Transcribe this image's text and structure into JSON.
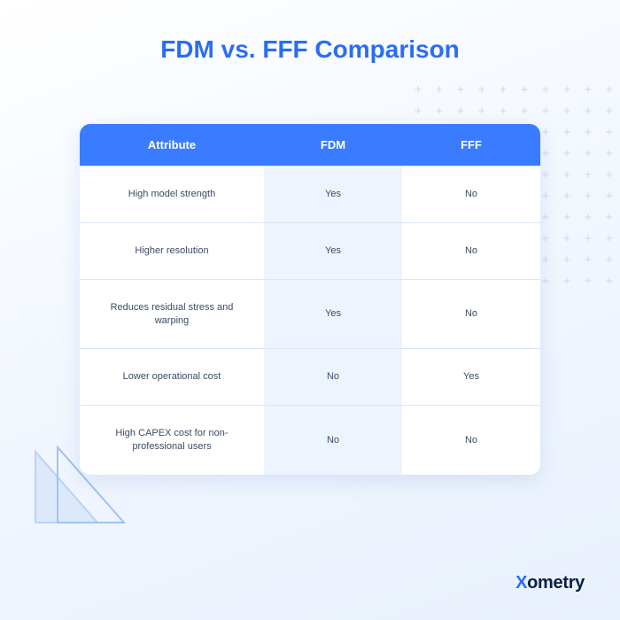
{
  "title": "FDM vs. FFF Comparison",
  "title_color": "#2a6df4",
  "header_bg": "#3a7cff",
  "header_text_color": "#ffffff",
  "row_border_color": "#d9e6f7",
  "highlight_col_bg": "#eef4fd",
  "cell_text_color": "#3a4a66",
  "columns": [
    "Attribute",
    "FDM",
    "FFF"
  ],
  "rows": [
    {
      "attribute": "High model strength",
      "fdm": "Yes",
      "fff": "No"
    },
    {
      "attribute": "Higher resolution",
      "fdm": "Yes",
      "fff": "No"
    },
    {
      "attribute": "Reduces residual stress and warping",
      "fdm": "Yes",
      "fff": "No"
    },
    {
      "attribute": "Lower operational cost",
      "fdm": "No",
      "fff": "Yes"
    },
    {
      "attribute": "High CAPEX cost for non-professional users",
      "fdm": "No",
      "fff": "No"
    }
  ],
  "decor": {
    "plus_color": "#c9dcf5",
    "triangle_stroke": "#b8d3f7",
    "triangle_fill": "#dce9fb"
  },
  "brand": {
    "x": "X",
    "rest": "ometry",
    "x_color": "#2a6df4",
    "rest_color": "#0a1f44"
  }
}
